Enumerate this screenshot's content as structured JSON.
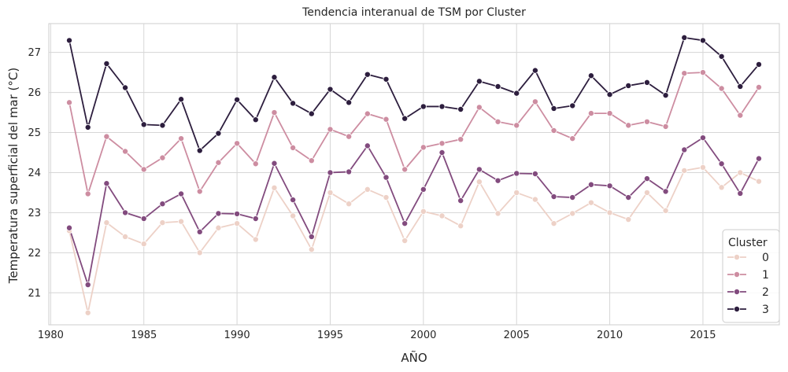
{
  "chart_data": {
    "type": "line",
    "title": "Tendencia interanual de TSM por Cluster",
    "xlabel": "AÑO",
    "ylabel": "Temperatura superficial del mar (°C)",
    "xlim": [
      1979.9,
      2019.1
    ],
    "ylim": [
      20.2,
      27.72
    ],
    "xticks": [
      1980,
      1985,
      1990,
      1995,
      2000,
      2005,
      2010,
      2015
    ],
    "yticks": [
      21,
      22,
      23,
      24,
      25,
      26,
      27
    ],
    "grid": true,
    "legend": {
      "title": "Cluster",
      "placement": "lower-right"
    },
    "x": [
      1981,
      1982,
      1983,
      1984,
      1985,
      1986,
      1987,
      1988,
      1989,
      1990,
      1991,
      1992,
      1993,
      1994,
      1995,
      1996,
      1997,
      1998,
      1999,
      2000,
      2001,
      2002,
      2003,
      2004,
      2005,
      2006,
      2007,
      2008,
      2009,
      2010,
      2011,
      2012,
      2013,
      2014,
      2015,
      2016,
      2017,
      2018
    ],
    "series": [
      {
        "name": "0",
        "color": "#edd1c7",
        "values": [
          22.55,
          20.5,
          22.75,
          22.4,
          22.22,
          22.75,
          22.78,
          22.0,
          22.62,
          22.73,
          22.33,
          23.62,
          22.92,
          22.08,
          23.5,
          23.22,
          23.58,
          23.38,
          22.3,
          23.03,
          22.92,
          22.67,
          23.77,
          22.98,
          23.5,
          23.33,
          22.73,
          22.98,
          23.25,
          23.0,
          22.83,
          23.5,
          23.05,
          24.05,
          24.13,
          23.63,
          24.0,
          23.78
        ]
      },
      {
        "name": "1",
        "color": "#cd8da1",
        "values": [
          25.75,
          23.47,
          24.9,
          24.53,
          24.08,
          24.37,
          24.85,
          23.53,
          24.25,
          24.73,
          24.22,
          25.5,
          24.62,
          24.3,
          25.08,
          24.9,
          25.47,
          25.33,
          24.08,
          24.63,
          24.73,
          24.83,
          25.63,
          25.27,
          25.18,
          25.77,
          25.05,
          24.85,
          25.48,
          25.48,
          25.18,
          25.27,
          25.15,
          26.48,
          26.5,
          26.1,
          25.43,
          26.13
        ]
      },
      {
        "name": "2",
        "color": "#824b7e",
        "values": [
          22.62,
          21.2,
          23.73,
          23.0,
          22.85,
          23.22,
          23.47,
          22.52,
          22.98,
          22.97,
          22.85,
          24.23,
          23.32,
          22.4,
          24.0,
          24.02,
          24.67,
          23.88,
          22.73,
          23.58,
          24.5,
          23.3,
          24.08,
          23.8,
          23.98,
          23.97,
          23.4,
          23.38,
          23.7,
          23.67,
          23.38,
          23.85,
          23.53,
          24.57,
          24.87,
          24.22,
          23.48,
          24.35
        ]
      },
      {
        "name": "3",
        "color": "#2d1e3e",
        "values": [
          27.3,
          25.13,
          26.72,
          26.12,
          25.2,
          25.18,
          25.83,
          24.55,
          24.98,
          25.82,
          25.32,
          26.38,
          25.73,
          25.47,
          26.08,
          25.75,
          26.45,
          26.33,
          25.35,
          25.65,
          25.65,
          25.58,
          26.28,
          26.15,
          25.98,
          26.55,
          25.6,
          25.67,
          26.42,
          25.95,
          26.17,
          26.25,
          25.93,
          27.37,
          27.3,
          26.9,
          26.15,
          26.7
        ]
      }
    ]
  }
}
